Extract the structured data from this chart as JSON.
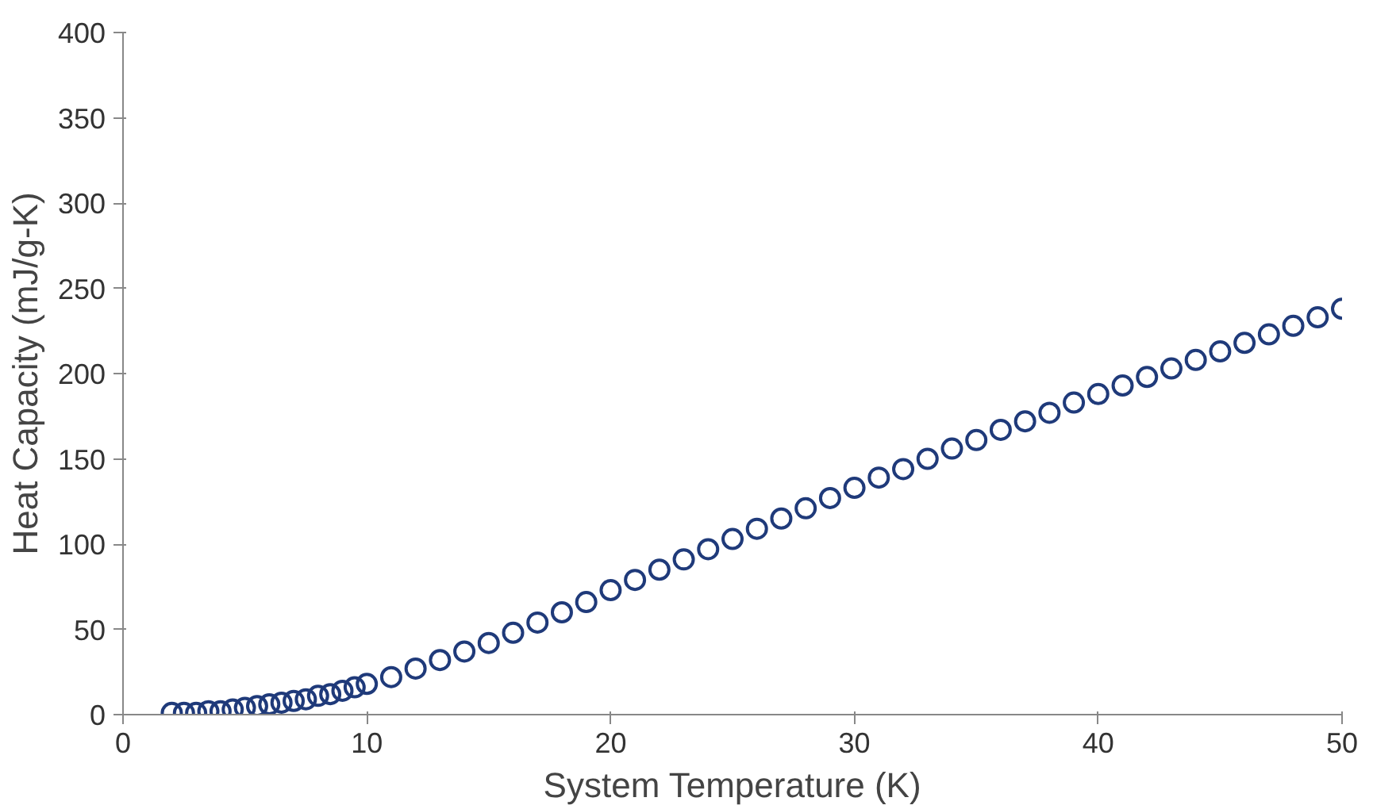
{
  "chart_data": {
    "type": "scatter",
    "xlabel": "System Temperature (K)",
    "ylabel": "Heat Capacity (mJ/g-K)",
    "x": [
      2,
      2.5,
      3,
      3.5,
      4,
      4.5,
      5,
      5.5,
      6,
      6.5,
      7,
      7.5,
      8,
      8.5,
      9,
      9.5,
      10,
      11,
      12,
      13,
      14,
      15,
      16,
      17,
      18,
      19,
      20,
      21,
      22,
      23,
      24,
      25,
      26,
      27,
      28,
      29,
      30,
      31,
      32,
      33,
      34,
      35,
      36,
      37,
      38,
      39,
      40,
      41,
      42,
      43,
      44,
      45,
      46,
      47,
      48,
      49,
      50
    ],
    "series": [
      {
        "color": "#1f3a7a",
        "values": [
          1,
          1,
          1,
          2,
          2,
          3,
          4,
          5,
          6,
          7,
          8,
          9,
          11,
          12,
          14,
          16,
          18,
          22,
          27,
          32,
          37,
          42,
          48,
          54,
          60,
          66,
          73,
          79,
          85,
          91,
          97,
          103,
          109,
          115,
          121,
          127,
          133,
          139,
          144,
          150,
          156,
          161,
          167,
          172,
          177,
          183,
          188,
          193,
          198,
          203,
          208,
          213,
          218,
          223,
          228,
          233,
          238
        ]
      }
    ],
    "xlim": [
      0,
      50
    ],
    "ylim": [
      0,
      400
    ],
    "xticks": [
      0,
      10,
      20,
      30,
      40,
      50
    ],
    "yticks": [
      0,
      50,
      100,
      150,
      200,
      250,
      300,
      350,
      400
    ],
    "grid": false,
    "marker": "circle"
  }
}
